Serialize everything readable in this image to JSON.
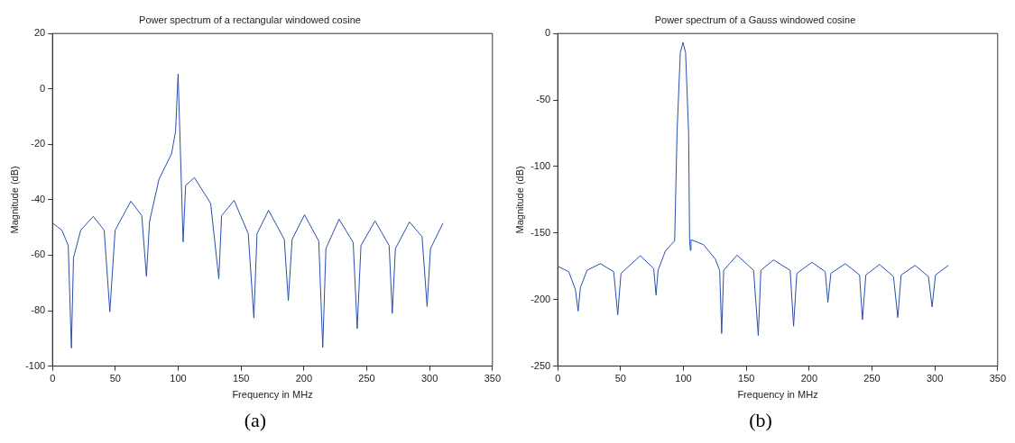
{
  "chart_data": [
    {
      "type": "line",
      "title": "Power spectrum of a rectangular windowed cosine",
      "xlabel": "Frequency in MHz",
      "ylabel": "Magnitude (dB)",
      "annotations": [
        "(a)"
      ],
      "xlim": [
        0,
        350
      ],
      "xticks": [
        0,
        50,
        100,
        150,
        200,
        250,
        300,
        350
      ],
      "ylim": [
        -100,
        20
      ],
      "yticks": [
        -100,
        -80,
        -60,
        -40,
        -20,
        0,
        20
      ],
      "marker": "none",
      "series": [
        {
          "color": "#2a4fb0",
          "x": [
            0,
            7.5,
            12.5,
            15,
            16.7,
            22.4,
            32.4,
            41.1,
            45.6,
            49.8,
            62.3,
            71,
            74.7,
            77.2,
            84.7,
            94.7,
            97.9,
            99.9,
            103.9,
            105.9,
            112.9,
            125.8,
            132.3,
            134.5,
            144.5,
            155.7,
            160.2,
            162.7,
            171.9,
            184.4,
            187.6,
            190.6,
            200.5,
            211.8,
            215,
            217.5,
            228,
            239.2,
            242.4,
            245.4,
            256.6,
            267.8,
            270.3,
            272.8,
            284,
            294,
            298,
            300.7,
            310.7
          ],
          "values": [
            -48.4,
            -51,
            -56.5,
            -93.5,
            -60.9,
            -51,
            -46,
            -51,
            -80.4,
            -51,
            -40.5,
            -45.7,
            -67.6,
            -47.8,
            -32.6,
            -23.4,
            -15.2,
            5.4,
            -55.2,
            -34.8,
            -32,
            -41.3,
            -68.5,
            -45.7,
            -40.2,
            -52.2,
            -82.6,
            -52.2,
            -43.8,
            -54.3,
            -76.4,
            -54.3,
            -45.4,
            -54.9,
            -93.3,
            -57.6,
            -47,
            -55.4,
            -86.5,
            -56.5,
            -47.6,
            -56.5,
            -81,
            -57.6,
            -48,
            -53.3,
            -78.5,
            -57.6,
            -48.4
          ]
        }
      ]
    },
    {
      "type": "line",
      "title": "Power spectrum of a Gauss windowed cosine",
      "xlabel": "Frequency in MHz",
      "ylabel": "Magnitude (dB)",
      "annotations": [
        "(b)"
      ],
      "xlim": [
        0,
        350
      ],
      "xticks": [
        0,
        50,
        100,
        150,
        200,
        250,
        300,
        350
      ],
      "ylim": [
        -250,
        0
      ],
      "yticks": [
        -250,
        -200,
        -150,
        -100,
        -50,
        0
      ],
      "marker": "none",
      "series": [
        {
          "color": "#2a4fb0",
          "x": [
            0,
            8.7,
            14,
            16.2,
            18,
            23.3,
            33.9,
            44.5,
            47.7,
            50.3,
            65.7,
            76.3,
            78.2,
            79.8,
            85.6,
            93,
            94.9,
            97.5,
            99.6,
            101.7,
            104.1,
            104.9,
            105.5,
            106,
            116,
            125.3,
            128.8,
            130.4,
            132,
            142.6,
            155.8,
            159.5,
            161.6,
            171.7,
            184.9,
            187.6,
            190.2,
            202.2,
            212.8,
            214.9,
            217.3,
            228.7,
            240.1,
            242.4,
            245.1,
            256,
            267.1,
            270.5,
            273.2,
            284.3,
            294.9,
            297.8,
            300.5,
            310.8
          ],
          "values": [
            -175,
            -179,
            -192.3,
            -208.7,
            -191,
            -177.9,
            -173,
            -179,
            -211.5,
            -180.3,
            -167,
            -176.7,
            -196.6,
            -177.9,
            -163.5,
            -155.8,
            -74.5,
            -14.4,
            -6.7,
            -14.4,
            -74.5,
            -155.8,
            -163,
            -155,
            -158.7,
            -169.5,
            -178,
            -225.5,
            -178,
            -166.6,
            -178,
            -227,
            -178,
            -170.2,
            -178,
            -220,
            -180.3,
            -172,
            -179,
            -202,
            -180.3,
            -173,
            -181.5,
            -215.1,
            -181.5,
            -173.6,
            -182.7,
            -213.5,
            -181.5,
            -174.3,
            -182.7,
            -205.5,
            -181.5,
            -174.3
          ]
        }
      ]
    }
  ]
}
